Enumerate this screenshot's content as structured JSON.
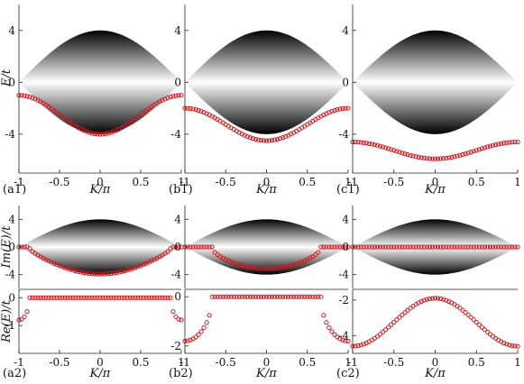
{
  "chart_data": [
    {
      "id": "a1",
      "type": "scatter",
      "panel_label": "(a1)",
      "xlabel": "K/π",
      "ylabel": "E/t",
      "xlim": [
        -1,
        1
      ],
      "ylim": [
        -7,
        6
      ],
      "xticks": [
        "-1",
        "-0.5",
        "0",
        "0.5",
        "1"
      ],
      "yticks": [
        "4",
        "0",
        "-4"
      ],
      "band": {
        "type": "continuum",
        "upper": "4 cos(πK/2)",
        "lower": "-4 cos(πK/2)"
      },
      "series": [
        {
          "marker": "open-circle",
          "color": "#d0191f",
          "formula": "E = -(1 + 3 cos²(πK/2))",
          "x_range": [
            -1,
            1
          ]
        }
      ]
    },
    {
      "id": "b1",
      "type": "scatter",
      "panel_label": "(b1)",
      "xlabel": "K/π",
      "xlim": [
        -1,
        1
      ],
      "ylim": [
        -7,
        6
      ],
      "xticks": [
        "-1",
        "-0.5",
        "0",
        "0.5",
        "1"
      ],
      "yticks": [
        "4",
        "0",
        "-4"
      ],
      "band": {
        "type": "continuum",
        "upper": "4 cos(πK/2)",
        "lower": "-4 cos(πK/2)"
      },
      "series": [
        {
          "marker": "open-circle",
          "color": "#d0191f",
          "formula": "E = -(2 + 2.5 cos²(πK/2))",
          "x_range": [
            -1,
            1
          ]
        }
      ]
    },
    {
      "id": "c1",
      "type": "scatter",
      "panel_label": "(c1)",
      "xlabel": "K/π",
      "xlim": [
        -1,
        1
      ],
      "ylim": [
        -7,
        6
      ],
      "xticks": [
        "-1",
        "-0.5",
        "0",
        "0.5",
        "1"
      ],
      "yticks": [
        "4",
        "0",
        "-4"
      ],
      "band": {
        "type": "continuum",
        "upper": "4 cos(πK/2)",
        "lower": "-4 cos(πK/2)"
      },
      "series": [
        {
          "marker": "open-circle",
          "color": "#d0191f",
          "formula": "E = -(4.6 + 1.3 cos²(πK/2))",
          "x_range": [
            -1,
            1
          ]
        }
      ]
    },
    {
      "id": "a2",
      "type": "scatter",
      "panel_label": "(a2)",
      "xlabel": "K/π",
      "ylabel_top": "Im(E)/t",
      "ylabel_bottom": "Re(E)/t",
      "xlim": [
        -1,
        1
      ],
      "xticks": [
        "-1",
        "-0.5",
        "0",
        "0.5",
        "1"
      ],
      "top": {
        "ylim": [
          -6,
          6
        ],
        "yticks": [
          "4",
          "0",
          "-4"
        ],
        "band": {
          "type": "continuum",
          "upper": "4 cos(πK/2)",
          "lower": "-4 cos(πK/2)"
        },
        "series": [
          {
            "marker": "open-circle",
            "color": "#d0191f",
            "formula": "E = -4 sqrt(cos²(πK/2) - 0.04) for |K| < 0.87, 0 otherwise",
            "x_range": [
              -1,
              1
            ]
          }
        ]
      },
      "bottom": {
        "ylim": [
          -2,
          0.3
        ],
        "yticks": [
          "0",
          "-1"
        ],
        "series": [
          {
            "marker": "open-circle",
            "color": "#d0191f",
            "formula": "0 for |K| < 0.87, -4 sqrt(0.04 - cos²(πK/2)) otherwise",
            "x_range": [
              -1,
              1
            ]
          }
        ]
      }
    },
    {
      "id": "b2",
      "type": "scatter",
      "panel_label": "(b2)",
      "xlabel": "K/π",
      "xlim": [
        -1,
        1
      ],
      "xticks": [
        "-1",
        "-0.5",
        "0",
        "0.5",
        "1"
      ],
      "top": {
        "ylim": [
          -6,
          6
        ],
        "yticks": [
          "4",
          "0",
          "-4"
        ],
        "band": {
          "type": "continuum",
          "upper": "4 cos(πK/2)",
          "lower": "-4 cos(πK/2)"
        },
        "series": [
          {
            "marker": "open-circle",
            "color": "#d0191f",
            "formula": "E = -3.6 sqrt(cos²(πK/2) - 0.25) for |K| < 0.67, 0 otherwise",
            "x_range": [
              -1,
              1
            ]
          }
        ]
      },
      "bottom": {
        "ylim": [
          -2.3,
          0.3
        ],
        "yticks": [
          "0",
          "-2"
        ],
        "series": [
          {
            "marker": "open-circle",
            "color": "#d0191f",
            "formula": "0 for |K| < 0.67, -3.6 sqrt(0.25 - cos²(πK/2)) otherwise",
            "x_range": [
              -1,
              1
            ]
          }
        ]
      }
    },
    {
      "id": "c2",
      "type": "scatter",
      "panel_label": "(c2)",
      "xlabel": "K/π",
      "xlim": [
        -1,
        1
      ],
      "xticks": [
        "-1",
        "-0.5",
        "0",
        "0.5",
        "1"
      ],
      "top": {
        "ylim": [
          -6,
          6
        ],
        "yticks": [
          "4",
          "0",
          "-4"
        ],
        "band": {
          "type": "continuum",
          "upper": "4 cos(πK/2)",
          "lower": "-4 cos(πK/2)"
        },
        "series": [
          {
            "marker": "open-circle",
            "color": "#d0191f",
            "formula": "E = 0",
            "x_range": [
              -1,
              1
            ]
          }
        ]
      },
      "bottom": {
        "ylim": [
          -5,
          -1.4
        ],
        "yticks": [
          "-2",
          "-4"
        ],
        "series": [
          {
            "marker": "open-circle",
            "color": "#d0191f",
            "formula": "E = -(4.6 - 2.7 cos²(πK/2))",
            "x_range": [
              -1,
              1
            ]
          }
        ]
      }
    }
  ]
}
